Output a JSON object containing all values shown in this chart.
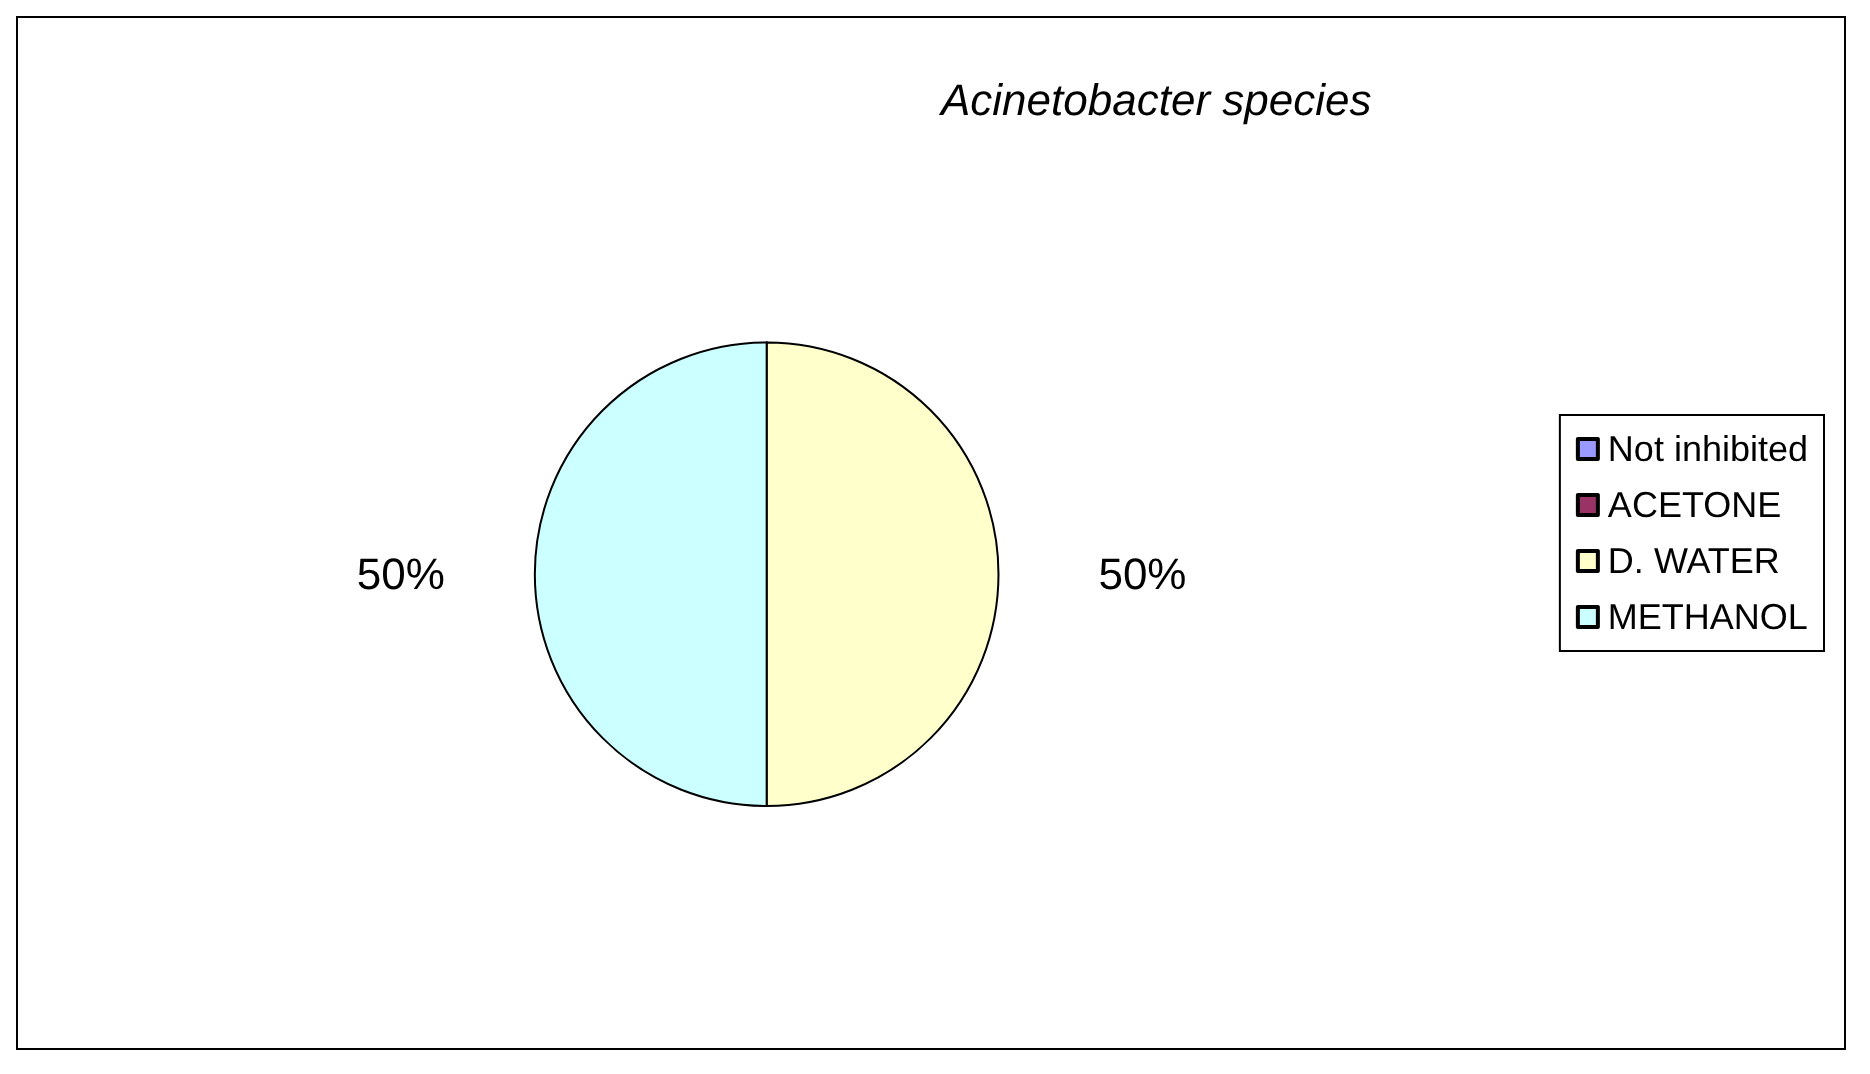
{
  "chart_data": {
    "type": "pie",
    "title": "Acinetobacter species",
    "categories": [
      "Not inhibited",
      "ACETONE",
      "D. WATER",
      "METHANOL"
    ],
    "values": [
      0,
      0,
      50,
      50
    ],
    "colors": [
      "#9999ff",
      "#993366",
      "#ffffcc",
      "#ccffff"
    ],
    "value_labels": [
      null,
      null,
      "50%",
      "50%"
    ],
    "legend": "right"
  }
}
